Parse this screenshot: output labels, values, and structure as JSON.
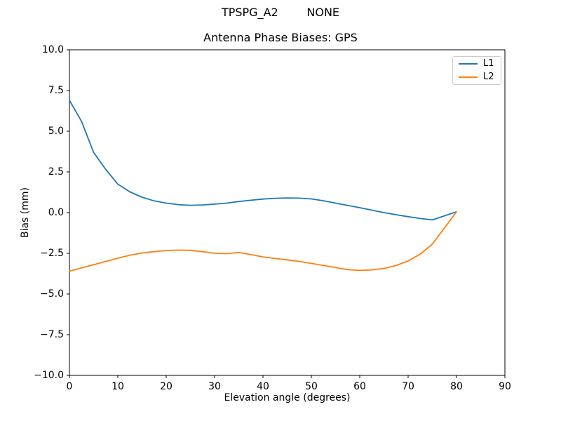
{
  "header": {
    "suptitle": "TPSPG_A2        NONE",
    "title": "Antenna Phase Biases: GPS"
  },
  "chart_data": {
    "type": "line",
    "suptitle": "TPSPG_A2        NONE",
    "title": "Antenna Phase Biases: GPS",
    "xlabel": "Elevation angle (degrees)",
    "ylabel": "Bias (mm)",
    "xlim": [
      0,
      90
    ],
    "ylim": [
      -10,
      10
    ],
    "grid": false,
    "legend_position": "upper right",
    "xticks": [
      0,
      10,
      20,
      30,
      40,
      50,
      60,
      70,
      80,
      90
    ],
    "xtick_labels": [
      "0",
      "10",
      "20",
      "30",
      "40",
      "50",
      "60",
      "70",
      "80",
      "90"
    ],
    "yticks": [
      -10,
      -7.5,
      -5,
      -2.5,
      0,
      2.5,
      5,
      7.5,
      10
    ],
    "ytick_labels": [
      "−10.0",
      "−7.5",
      "−5.0",
      "−2.5",
      "0.0",
      "2.5",
      "5.0",
      "7.5",
      "10.0"
    ],
    "x": [
      0,
      2.5,
      5,
      7.5,
      10,
      12.5,
      15,
      17.5,
      20,
      22.5,
      25,
      27.5,
      30,
      32.5,
      35,
      37.5,
      40,
      42.5,
      45,
      47.5,
      50,
      52.5,
      55,
      57.5,
      60,
      62.5,
      65,
      67.5,
      70,
      72.5,
      75,
      77.5,
      80
    ],
    "series": [
      {
        "name": "L1",
        "color": "#1f77b4",
        "values": [
          6.9,
          5.6,
          3.7,
          2.65,
          1.75,
          1.27,
          0.95,
          0.72,
          0.58,
          0.49,
          0.45,
          0.47,
          0.52,
          0.58,
          0.68,
          0.76,
          0.83,
          0.88,
          0.9,
          0.89,
          0.84,
          0.73,
          0.58,
          0.44,
          0.3,
          0.15,
          0.0,
          -0.13,
          -0.25,
          -0.36,
          -0.45,
          -0.2,
          0.05
        ]
      },
      {
        "name": "L2",
        "color": "#ff7f0e",
        "values": [
          -3.6,
          -3.4,
          -3.2,
          -3.0,
          -2.8,
          -2.62,
          -2.48,
          -2.4,
          -2.33,
          -2.3,
          -2.32,
          -2.4,
          -2.5,
          -2.52,
          -2.45,
          -2.58,
          -2.72,
          -2.82,
          -2.9,
          -3.0,
          -3.12,
          -3.25,
          -3.38,
          -3.5,
          -3.55,
          -3.52,
          -3.43,
          -3.25,
          -2.97,
          -2.55,
          -1.93,
          -0.95,
          0.05
        ]
      }
    ]
  }
}
